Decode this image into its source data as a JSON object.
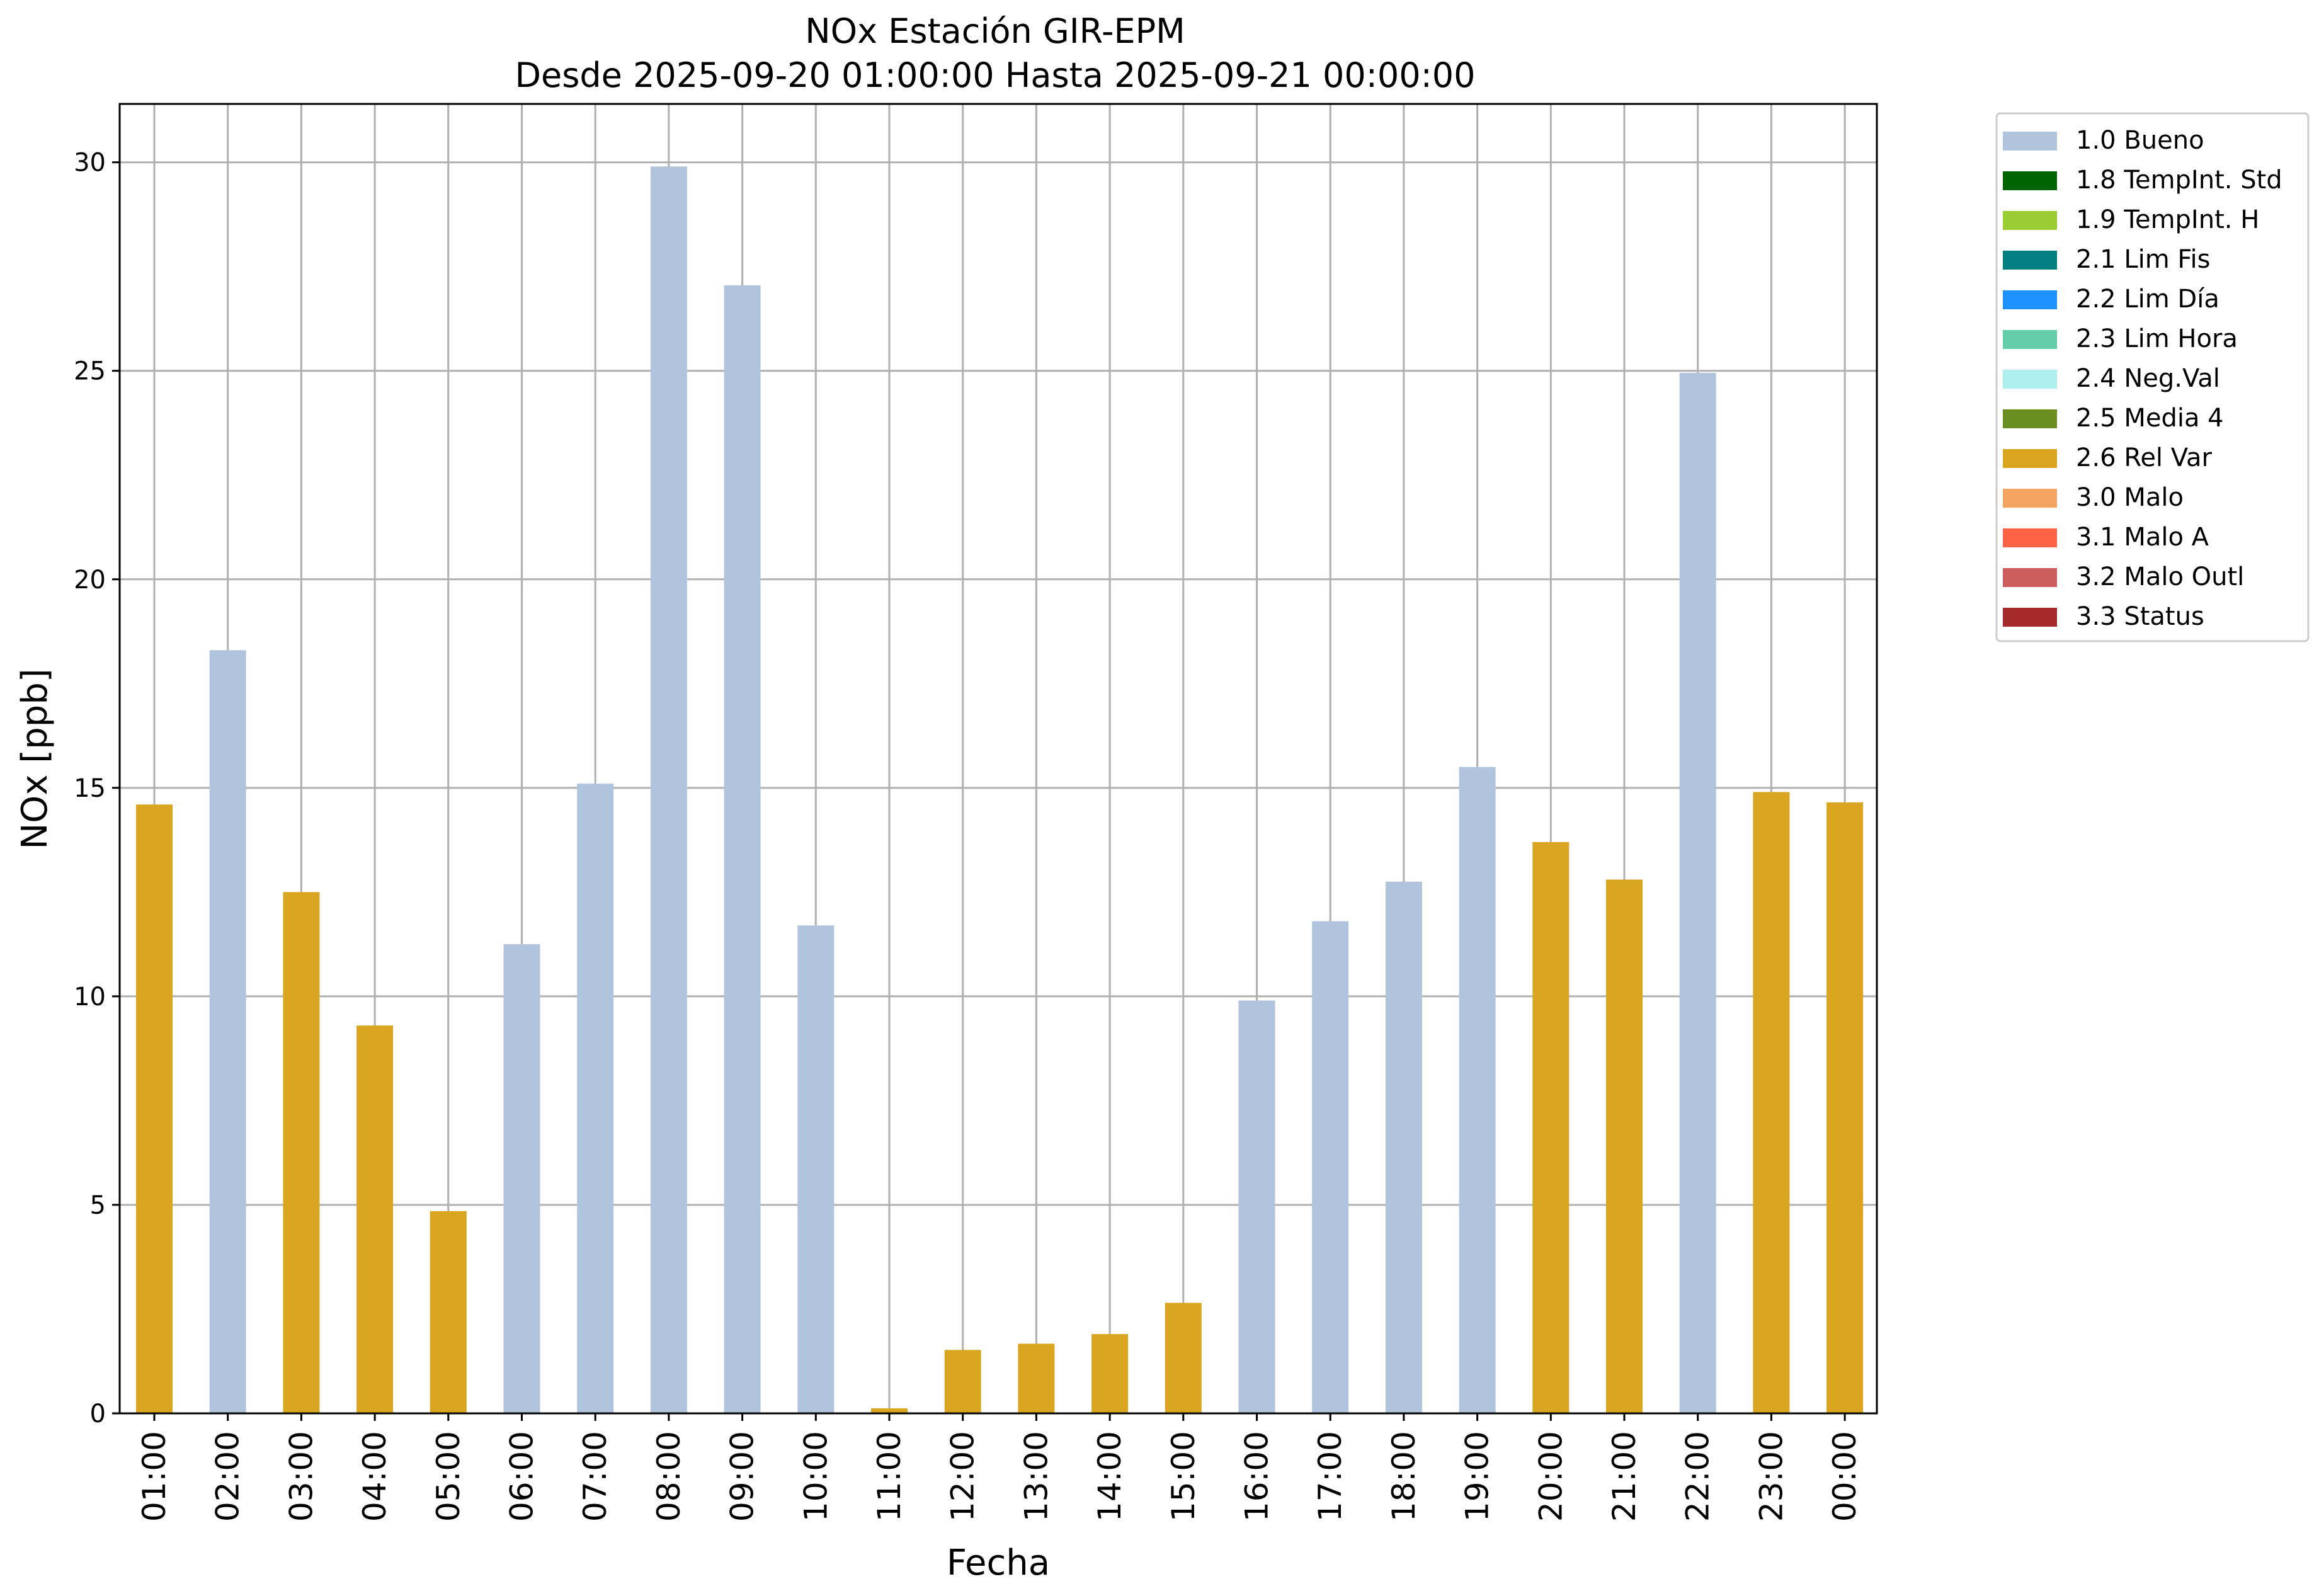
{
  "chart_data": {
    "type": "bar",
    "title": "NOx Estación GIR-EPM",
    "subtitle": "Desde 2025-09-20 01:00:00 Hasta 2025-09-21 00:00:00",
    "xlabel": "Fecha",
    "ylabel": "NOx [ppb]",
    "ylim": [
      0,
      31.4
    ],
    "yticks": [
      "0",
      "5",
      "10",
      "15",
      "20",
      "25",
      "30"
    ],
    "grid": true,
    "legend_position": "outside-right-top",
    "categories": [
      "01:00",
      "02:00",
      "03:00",
      "04:00",
      "05:00",
      "06:00",
      "07:00",
      "08:00",
      "09:00",
      "10:00",
      "11:00",
      "12:00",
      "13:00",
      "14:00",
      "15:00",
      "16:00",
      "17:00",
      "18:00",
      "19:00",
      "20:00",
      "21:00",
      "22:00",
      "23:00",
      "00:00"
    ],
    "values": [
      14.6,
      18.3,
      12.5,
      9.3,
      4.85,
      11.25,
      15.1,
      29.9,
      27.05,
      11.7,
      0.12,
      1.52,
      1.67,
      1.9,
      2.65,
      9.9,
      11.8,
      12.75,
      15.5,
      13.7,
      12.8,
      24.95,
      14.9,
      14.65
    ],
    "flags": [
      "2.6 Rel Var",
      "1.0 Bueno",
      "2.6 Rel Var",
      "2.6 Rel Var",
      "2.6 Rel Var",
      "1.0 Bueno",
      "1.0 Bueno",
      "1.0 Bueno",
      "1.0 Bueno",
      "1.0 Bueno",
      "2.6 Rel Var",
      "2.6 Rel Var",
      "2.6 Rel Var",
      "2.6 Rel Var",
      "2.6 Rel Var",
      "1.0 Bueno",
      "1.0 Bueno",
      "1.0 Bueno",
      "1.0 Bueno",
      "2.6 Rel Var",
      "2.6 Rel Var",
      "1.0 Bueno",
      "2.6 Rel Var",
      "2.6 Rel Var"
    ],
    "legend": [
      {
        "label": "1.0 Bueno",
        "color": "#b0c4de"
      },
      {
        "label": "1.8 TempInt. Std",
        "color": "#006400"
      },
      {
        "label": "1.9 TempInt. H",
        "color": "#9acd32"
      },
      {
        "label": "2.1 Lim Fis",
        "color": "#008080"
      },
      {
        "label": "2.2 Lim Día",
        "color": "#1e90ff"
      },
      {
        "label": "2.3 Lim Hora",
        "color": "#66cdaa"
      },
      {
        "label": "2.4 Neg.Val",
        "color": "#afeeee"
      },
      {
        "label": "2.5 Media 4",
        "color": "#6b8e23"
      },
      {
        "label": "2.6 Rel Var",
        "color": "#daa520"
      },
      {
        "label": "3.0 Malo",
        "color": "#f4a460"
      },
      {
        "label": "3.1 Malo A",
        "color": "#ff6347"
      },
      {
        "label": "3.2 Malo Outl",
        "color": "#cd5c5c"
      },
      {
        "label": "3.3 Status",
        "color": "#a52a2a"
      }
    ]
  }
}
